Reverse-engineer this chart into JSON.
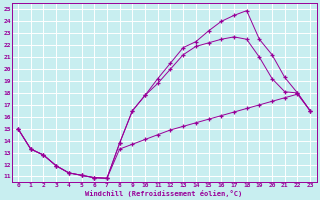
{
  "xlabel": "Windchill (Refroidissement éolien,°C)",
  "bg_color": "#c8eef0",
  "line_color": "#990099",
  "grid_color": "#ffffff",
  "xlim": [
    -0.5,
    23.5
  ],
  "ylim": [
    10.5,
    25.5
  ],
  "xticks": [
    0,
    1,
    2,
    3,
    4,
    5,
    6,
    7,
    8,
    9,
    10,
    11,
    12,
    13,
    14,
    15,
    16,
    17,
    18,
    19,
    20,
    21,
    22,
    23
  ],
  "yticks": [
    11,
    12,
    13,
    14,
    15,
    16,
    17,
    18,
    19,
    20,
    21,
    22,
    23,
    24,
    25
  ],
  "line1_x": [
    0,
    1,
    2,
    3,
    4,
    5,
    6,
    7,
    8,
    9,
    10,
    11,
    12,
    13,
    14,
    15,
    16,
    17,
    18,
    19,
    20,
    21,
    22,
    23
  ],
  "line1_y": [
    15.0,
    13.3,
    12.8,
    11.9,
    11.3,
    11.1,
    10.9,
    10.85,
    13.3,
    13.7,
    14.1,
    14.5,
    14.9,
    15.2,
    15.5,
    15.8,
    16.1,
    16.4,
    16.7,
    17.0,
    17.3,
    17.6,
    17.9,
    16.5
  ],
  "line2_x": [
    0,
    1,
    2,
    3,
    4,
    5,
    6,
    7,
    8,
    9,
    10,
    11,
    12,
    13,
    14,
    15,
    16,
    17,
    18,
    19,
    20,
    21,
    22,
    23
  ],
  "line2_y": [
    15.0,
    13.3,
    12.8,
    11.9,
    11.3,
    11.1,
    10.9,
    10.85,
    13.8,
    16.5,
    17.8,
    18.8,
    20.0,
    21.2,
    21.9,
    22.2,
    22.5,
    22.7,
    22.5,
    21.0,
    19.2,
    18.1,
    18.0,
    16.5
  ],
  "line3_x": [
    0,
    1,
    2,
    3,
    4,
    5,
    6,
    7,
    8,
    9,
    10,
    11,
    12,
    13,
    14,
    15,
    16,
    17,
    18,
    19,
    20,
    21,
    22,
    23
  ],
  "line3_y": [
    15.0,
    13.3,
    12.8,
    11.9,
    11.3,
    11.1,
    10.9,
    10.85,
    13.8,
    16.5,
    17.8,
    19.2,
    20.5,
    21.8,
    22.3,
    23.2,
    24.0,
    24.5,
    24.9,
    22.5,
    21.2,
    19.3,
    18.0,
    16.5
  ]
}
